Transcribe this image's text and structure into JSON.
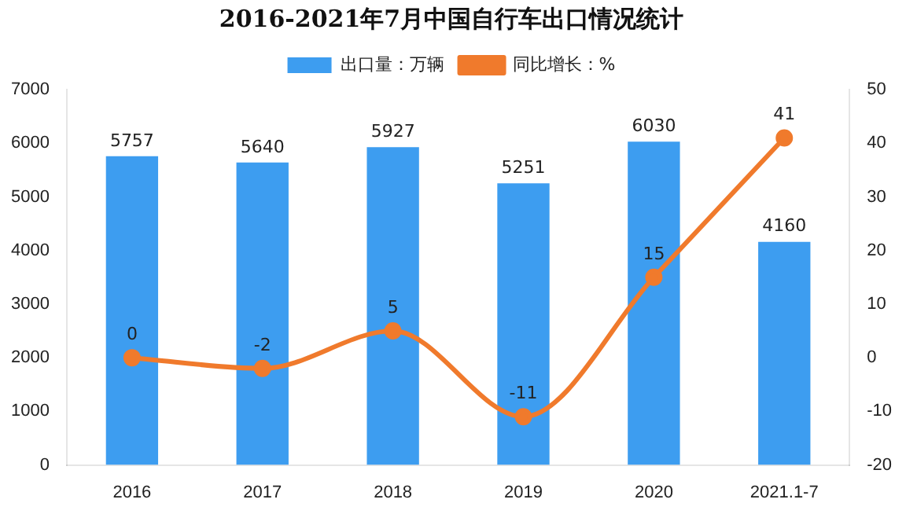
{
  "chart_data": {
    "type": "bar",
    "title": "2016-2021年7月中国自行车出口情况统计",
    "categories": [
      "2016",
      "2017",
      "2018",
      "2019",
      "2020",
      "2021.1-7"
    ],
    "series": [
      {
        "name": "出口量：万辆",
        "color": "#3d9df0",
        "values": [
          5757,
          5640,
          5927,
          5251,
          6030,
          4160
        ]
      },
      {
        "name": "同比增长：%",
        "type": "line",
        "axis": "y2",
        "color": "#f07a2c",
        "values": [
          0,
          -2,
          5,
          -11,
          15,
          41
        ]
      }
    ],
    "ylim": [
      0,
      7000
    ],
    "yticks": [
      0,
      1000,
      2000,
      3000,
      4000,
      5000,
      6000,
      7000
    ],
    "y2lim": [
      -20,
      50
    ],
    "y2ticks": [
      -20,
      -10,
      0,
      10,
      20,
      30,
      40,
      50
    ],
    "legend": "top",
    "data_labels": true,
    "marker": "circle",
    "grid": false
  }
}
